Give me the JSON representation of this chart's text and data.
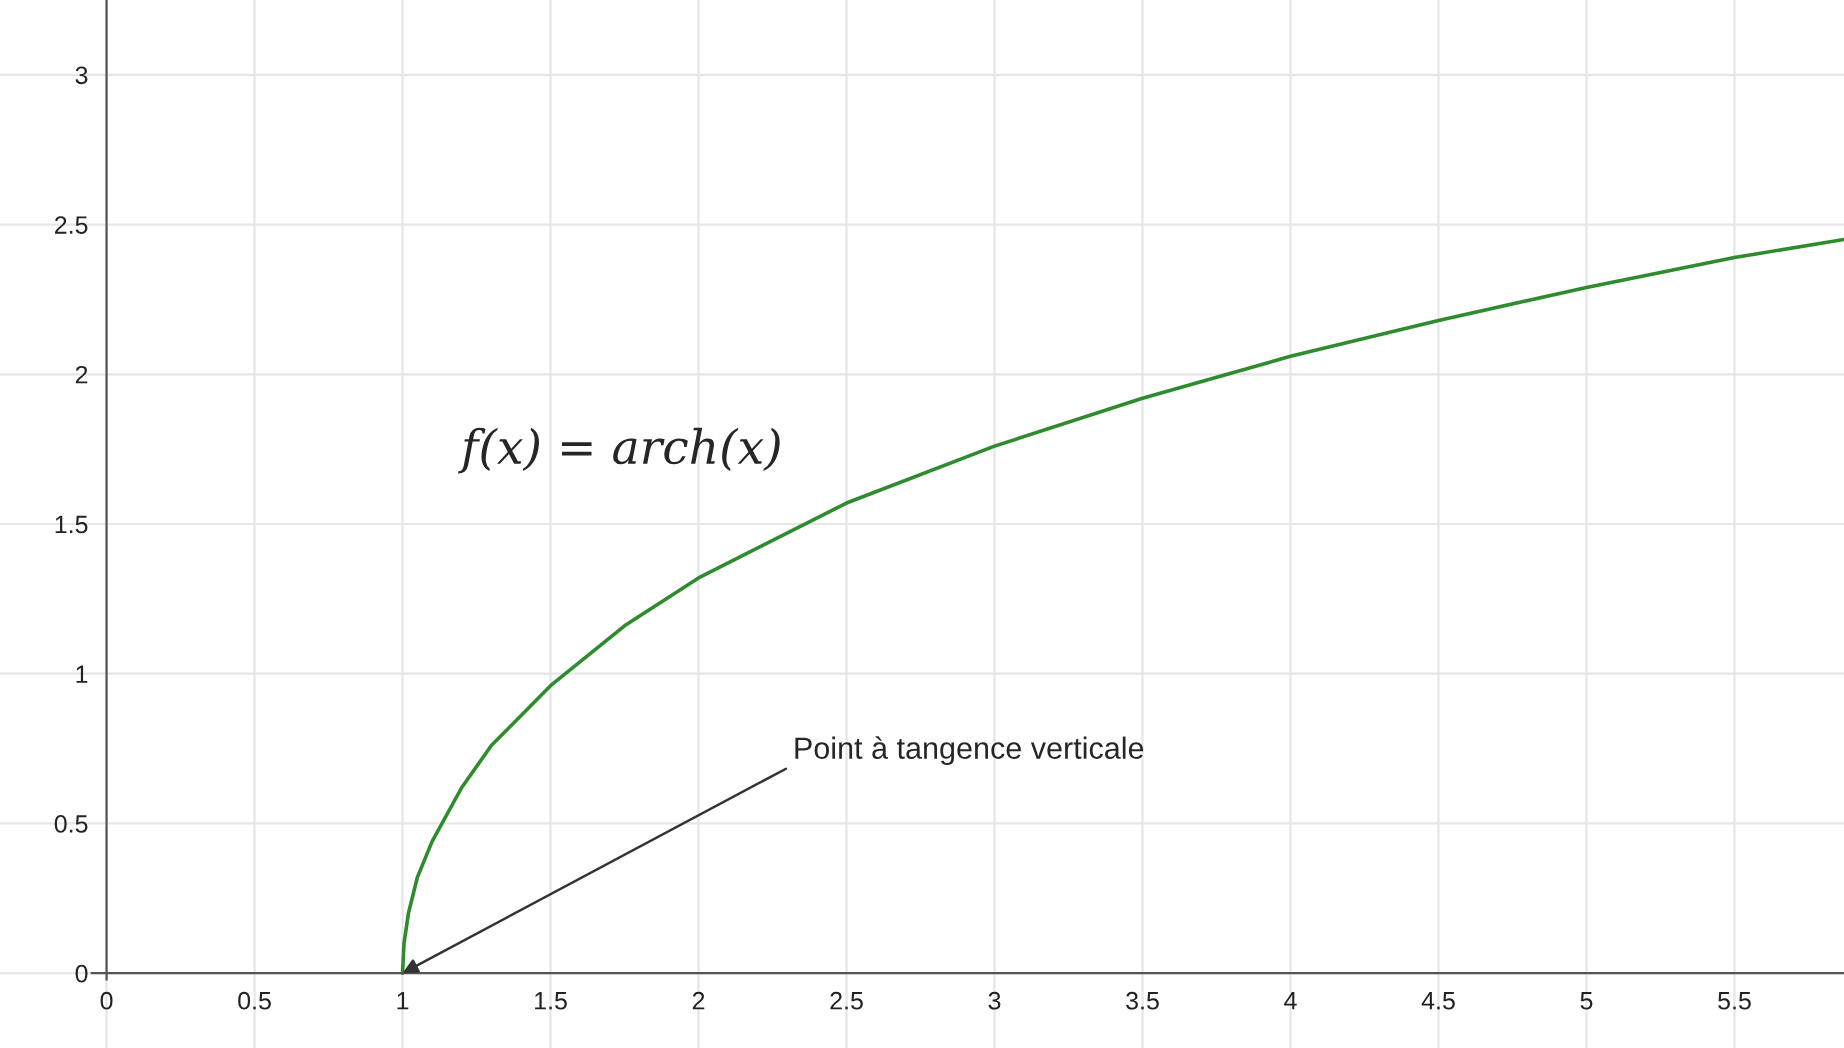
{
  "chart_data": {
    "type": "line",
    "x": [
      1,
      1.005,
      1.02,
      1.05,
      1.1,
      1.2,
      1.3,
      1.5,
      1.75,
      2,
      2.5,
      3,
      3.5,
      4,
      4.5,
      5,
      5.5,
      5.87
    ],
    "series": [
      {
        "color": "#2e8b2e",
        "values": [
          0,
          0.1,
          0.2,
          0.32,
          0.44,
          0.62,
          0.76,
          0.96,
          1.16,
          1.32,
          1.57,
          1.76,
          1.92,
          2.06,
          2.18,
          2.29,
          2.39,
          2.45
        ]
      }
    ],
    "xlim": [
      -0.36,
      5.87
    ],
    "ylim": [
      -0.25,
      3.25
    ],
    "xticks": [
      0,
      0.5,
      1,
      1.5,
      2,
      2.5,
      3,
      3.5,
      4,
      4.5,
      5,
      5.5
    ],
    "yticks": [
      0,
      0.5,
      1,
      1.5,
      2,
      2.5,
      3
    ],
    "grid": true,
    "annotations": [
      "f(x) = arch(x)",
      {
        "text": "Point à tangence verticale",
        "x": 1,
        "y": 0
      }
    ]
  }
}
